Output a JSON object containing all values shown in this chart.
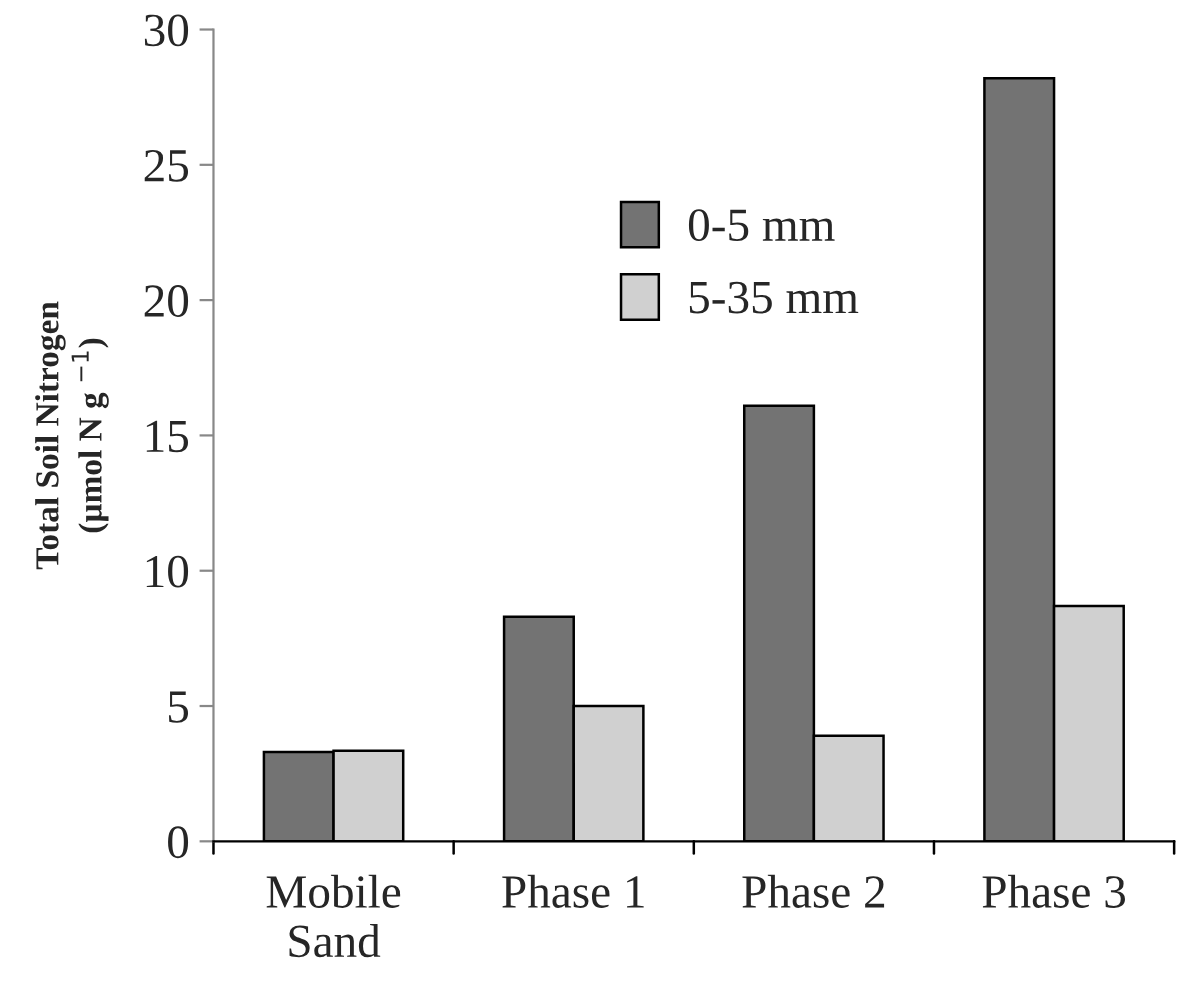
{
  "chart_data": {
    "type": "bar",
    "ylabel": "Total Soil Nitrogen\n(µmol N g $^{−1}$)",
    "categories": [
      "Mobile\nSand",
      "Phase 1",
      "Phase 2",
      "Phase 3"
    ],
    "series": [
      {
        "name": "0-5 mm",
        "color": "#737373",
        "values": [
          3.3,
          8.3,
          16.1,
          28.2
        ]
      },
      {
        "name": "5-35 mm",
        "color": "#d0d0d0",
        "values": [
          3.35,
          5.0,
          3.9,
          8.7
        ]
      }
    ],
    "ylim": [
      0,
      30
    ],
    "yticks": [
      0,
      5,
      10,
      15,
      20,
      25,
      30
    ],
    "legend": "top",
    "grid": false
  }
}
